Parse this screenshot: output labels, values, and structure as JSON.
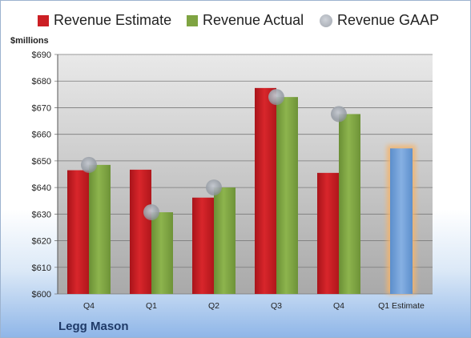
{
  "chart_data": {
    "type": "bar",
    "ylabel": "$millions",
    "ylim": [
      600,
      690
    ],
    "yticks": [
      "$600",
      "$610",
      "$620",
      "$630",
      "$640",
      "$650",
      "$660",
      "$670",
      "$680",
      "$690"
    ],
    "categories": [
      "Q4",
      "Q1",
      "Q2",
      "Q3",
      "Q4",
      "Q1 Estimate"
    ],
    "series": [
      {
        "name": "Revenue Estimate",
        "color": "#cc1f24",
        "values": [
          646.5,
          646.7,
          636.2,
          677.4,
          645.5,
          null
        ]
      },
      {
        "name": "Revenue Actual",
        "color": "#7fa442",
        "values": [
          648.5,
          630.7,
          640.0,
          674.0,
          667.6,
          null
        ]
      },
      {
        "name": "Revenue GAAP",
        "color": "#a9aeb6",
        "marker": "dot",
        "values": [
          648.5,
          630.7,
          640.0,
          674.0,
          667.6,
          null
        ]
      }
    ],
    "estimate": {
      "category": "Q1 Estimate",
      "value": 654.7,
      "color": "#6f9fd8",
      "glow": "#f5b46a"
    },
    "legend": "top",
    "grid": true
  },
  "footer": {
    "company": "Legg Mason"
  }
}
